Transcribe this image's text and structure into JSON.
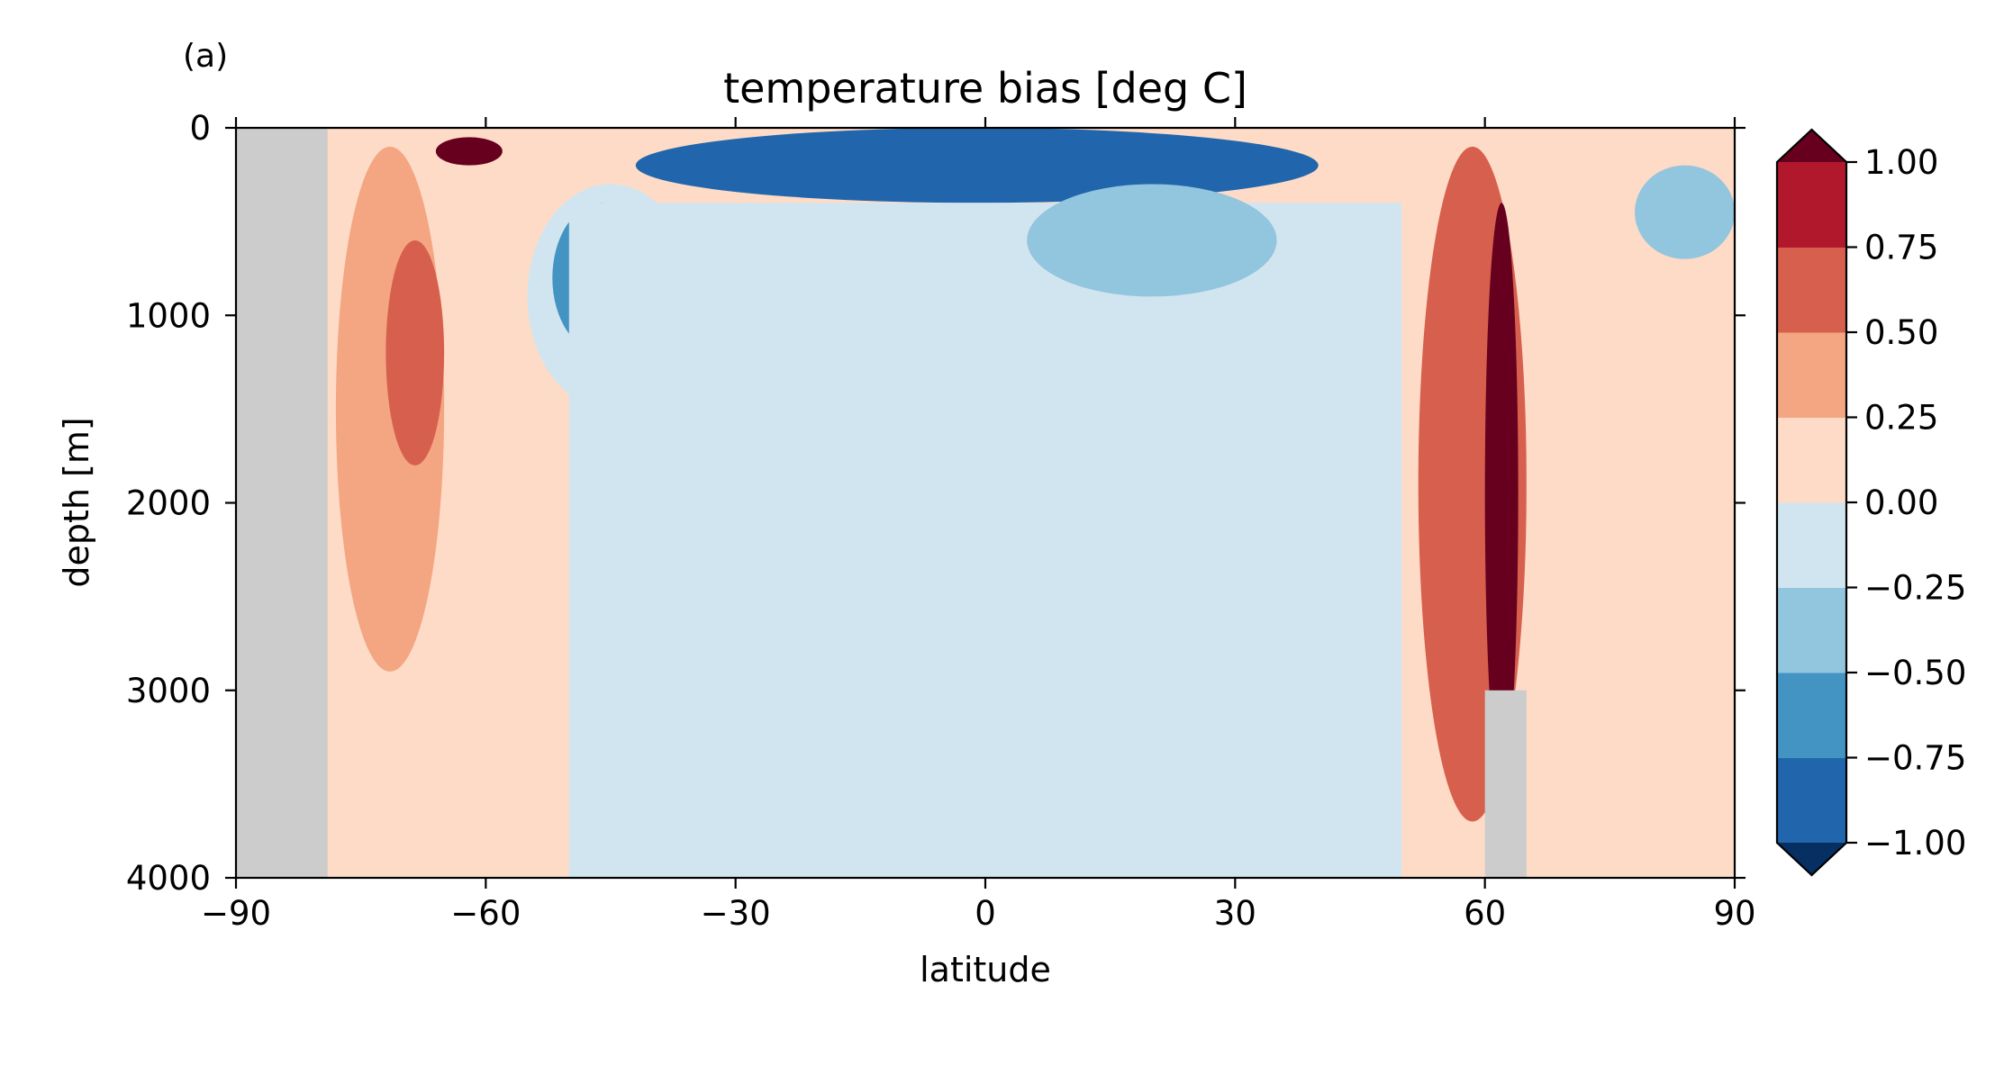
{
  "chart_data": {
    "type": "heatmap",
    "panel_label": "(a)",
    "title": "temperature bias [deg C]",
    "xlabel": "latitude",
    "ylabel": "depth [m]",
    "xlim": [
      -90,
      90
    ],
    "ylim": [
      4000,
      0
    ],
    "y_inverted": true,
    "xticks": [
      -90,
      -60,
      -30,
      0,
      30,
      60,
      90
    ],
    "xtick_labels": [
      "−90",
      "−60",
      "−30",
      "0",
      "30",
      "60",
      "90"
    ],
    "yticks": [
      0,
      1000,
      2000,
      3000,
      4000
    ],
    "ytick_labels": [
      "0",
      "1000",
      "2000",
      "3000",
      "4000"
    ],
    "colormap": "RdBu_r",
    "colorbar": {
      "levels": [
        -1.0,
        -0.75,
        -0.5,
        -0.25,
        0.0,
        0.25,
        0.5,
        0.75,
        1.0
      ],
      "tick_labels": [
        "−1.00",
        "−0.75",
        "−0.50",
        "−0.25",
        "0.00",
        "0.25",
        "0.50",
        "0.75",
        "1.00"
      ],
      "extend": "both",
      "colors": {
        "below": "#053061",
        "bins": [
          "#053061",
          "#2166ac",
          "#4393c3",
          "#92c5de",
          "#d1e5f0",
          "#fddbc7",
          "#f4a582",
          "#d6604d",
          "#b2182b",
          "#67001f"
        ],
        "above": "#67001f",
        "land": "#cccccc"
      }
    },
    "bias_field_estimate": [
      {
        "lat_range": [
          -90,
          -79
        ],
        "depth_range": [
          0,
          4000
        ],
        "value": "land"
      },
      {
        "lat_range": [
          -78,
          -65
        ],
        "depth_range": [
          100,
          2900
        ],
        "value": 0.25
      },
      {
        "lat_range": [
          -72,
          -65
        ],
        "depth_range": [
          600,
          1800
        ],
        "value": 0.5
      },
      {
        "lat_range": [
          -66,
          -58
        ],
        "depth_range": [
          50,
          200
        ],
        "value": 1.0
      },
      {
        "lat_range": [
          -55,
          -35
        ],
        "depth_range": [
          300,
          1500
        ],
        "value": -0.25
      },
      {
        "lat_range": [
          -52,
          -40
        ],
        "depth_range": [
          400,
          1200
        ],
        "value": -0.75
      },
      {
        "lat_range": [
          -42,
          40
        ],
        "depth_range": [
          0,
          400
        ],
        "value": -1.0
      },
      {
        "lat_range": [
          -50,
          50
        ],
        "depth_range": [
          400,
          4000
        ],
        "value": -0.1
      },
      {
        "lat_range": [
          5,
          35
        ],
        "depth_range": [
          300,
          900
        ],
        "value": -0.5
      },
      {
        "lat_range": [
          32,
          46
        ],
        "depth_range": [
          1200,
          1700
        ],
        "value": -0.25
      },
      {
        "lat_range": [
          52,
          65
        ],
        "depth_range": [
          100,
          3700
        ],
        "value": 0.5
      },
      {
        "lat_range": [
          60,
          64
        ],
        "depth_range": [
          400,
          3500
        ],
        "value": 1.0
      },
      {
        "lat_range": [
          60,
          73
        ],
        "depth_range": [
          3000,
          4000
        ],
        "value": "land"
      },
      {
        "lat_range": [
          78,
          90
        ],
        "depth_range": [
          200,
          700
        ],
        "value": -0.5
      },
      {
        "lat_range": [
          65,
          90
        ],
        "depth_range": [
          700,
          4000
        ],
        "value": 0.1
      }
    ]
  }
}
